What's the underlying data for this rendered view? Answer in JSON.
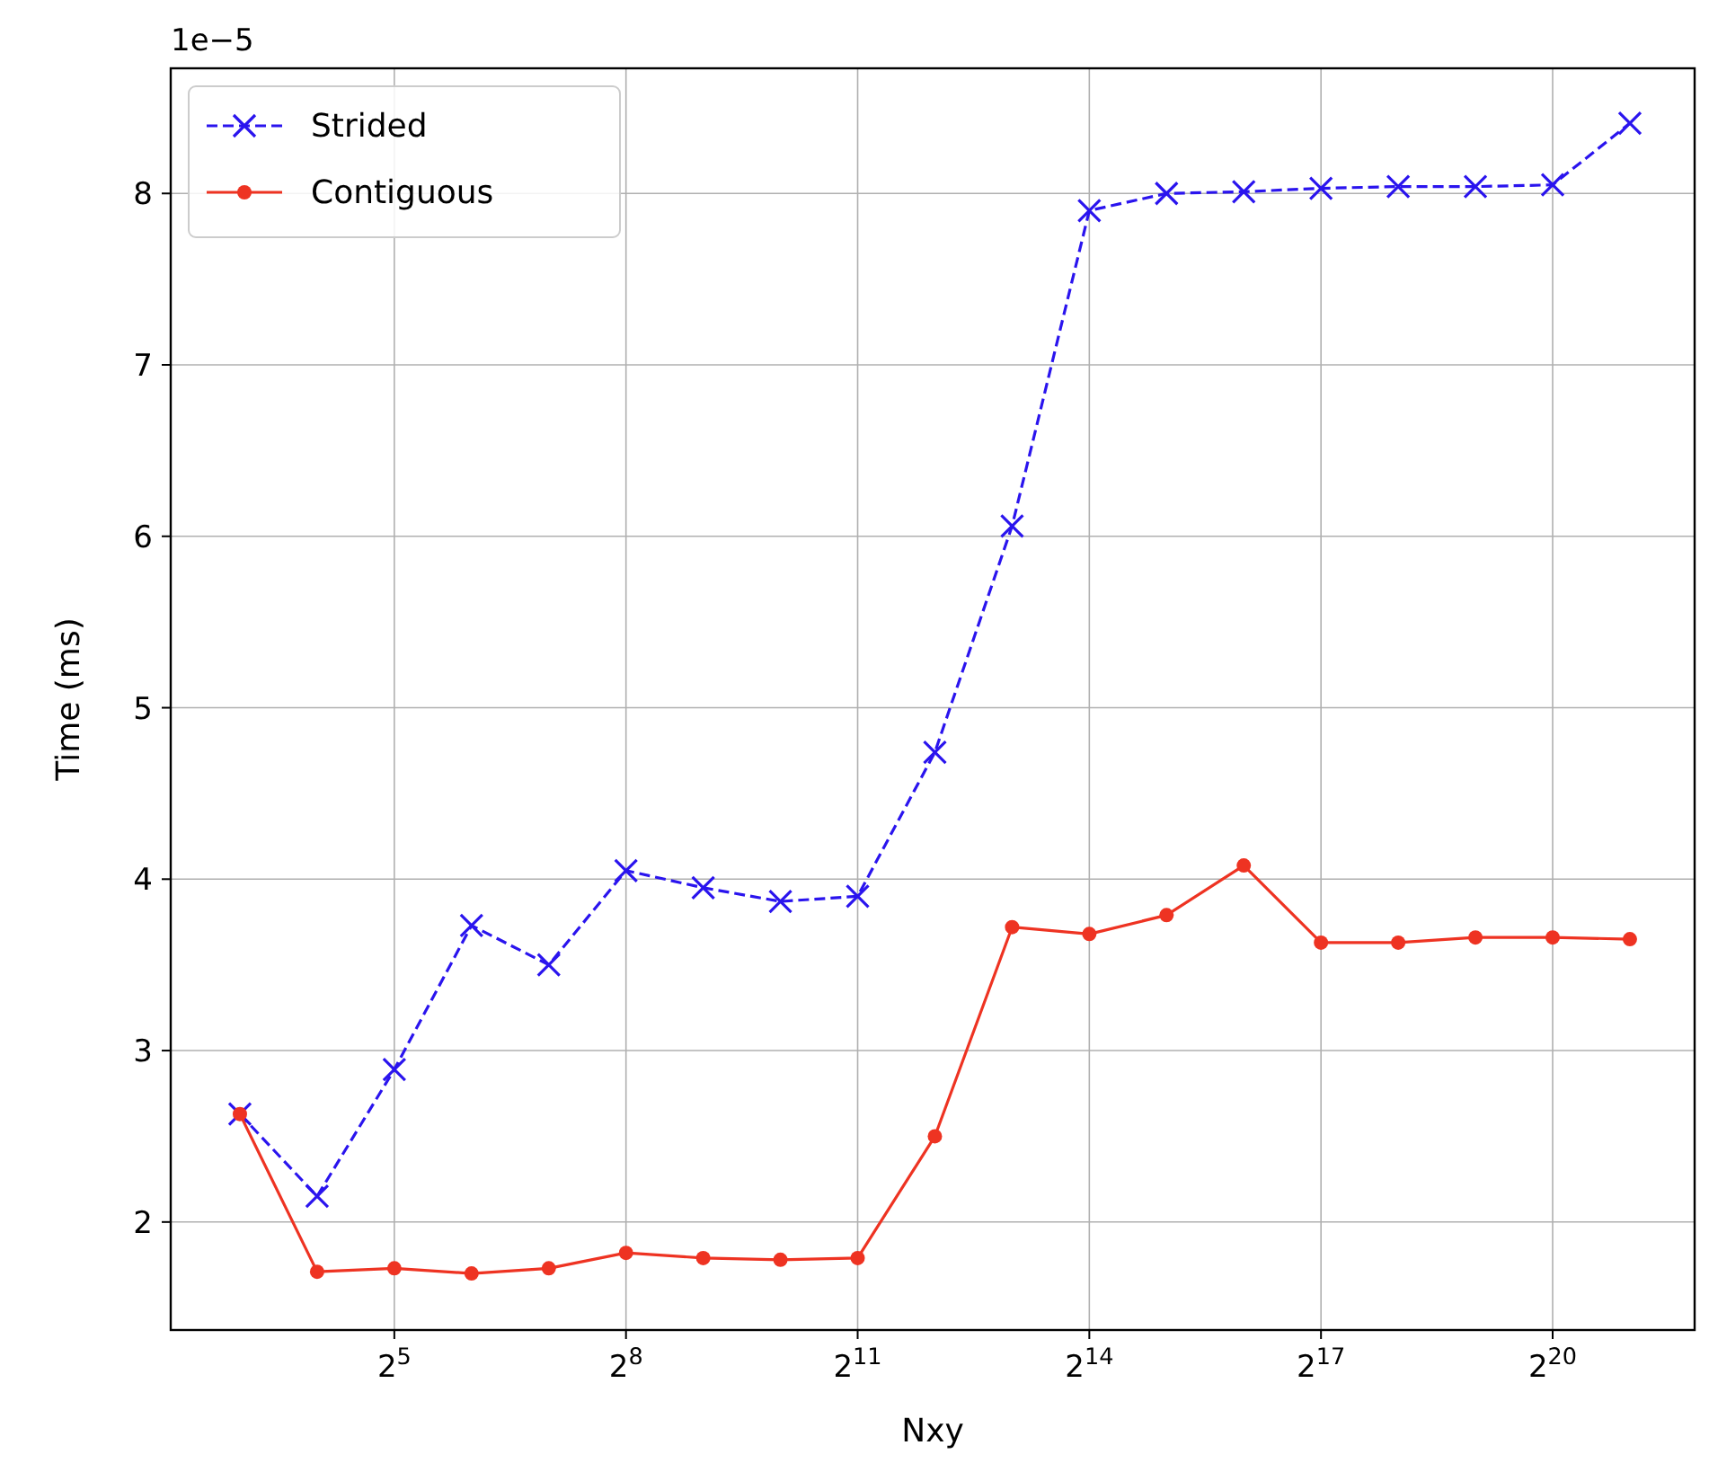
{
  "chart_data": {
    "type": "line",
    "xlabel": "Nxy",
    "ylabel": "Time (ms)",
    "annotations": [
      "1e−5"
    ],
    "log": "x",
    "x": [
      8,
      16,
      32,
      64,
      128,
      256,
      512,
      1024,
      2048,
      4096,
      8192,
      16384,
      32768,
      65536,
      131072,
      262144,
      524288,
      1048576,
      2097152
    ],
    "xlim": [
      4.3,
      3750000
    ],
    "xticks": [
      {
        "value": 32,
        "label": "2$^{5}$"
      },
      {
        "value": 256,
        "label": "2$^{8}$"
      },
      {
        "value": 2048,
        "label": "2$^{11}$"
      },
      {
        "value": 16384,
        "label": "2$^{14}$"
      },
      {
        "value": 131072,
        "label": "2$^{17}$"
      },
      {
        "value": 1048576,
        "label": "2$^{20}$"
      }
    ],
    "ylim": [
      1.37,
      8.73
    ],
    "yticks": [
      2,
      3,
      4,
      5,
      6,
      7,
      8
    ],
    "grid": true,
    "legend": "top left",
    "series": [
      {
        "name": "Strided",
        "color": "#2a14ee",
        "marker": "cross",
        "line_style": "dashed",
        "values": [
          2.63,
          2.15,
          2.89,
          3.73,
          3.5,
          4.05,
          3.95,
          3.87,
          3.9,
          4.74,
          6.06,
          7.9,
          8.0,
          8.01,
          8.03,
          8.04,
          8.04,
          8.05,
          8.41
        ]
      },
      {
        "name": "Contiguous",
        "color": "#ee3322",
        "marker": "circle",
        "line_style": "solid",
        "values": [
          2.63,
          1.71,
          1.73,
          1.7,
          1.73,
          1.82,
          1.79,
          1.78,
          1.79,
          2.5,
          3.72,
          3.68,
          3.79,
          4.08,
          3.63,
          3.63,
          3.66,
          3.66,
          3.65
        ]
      }
    ]
  }
}
